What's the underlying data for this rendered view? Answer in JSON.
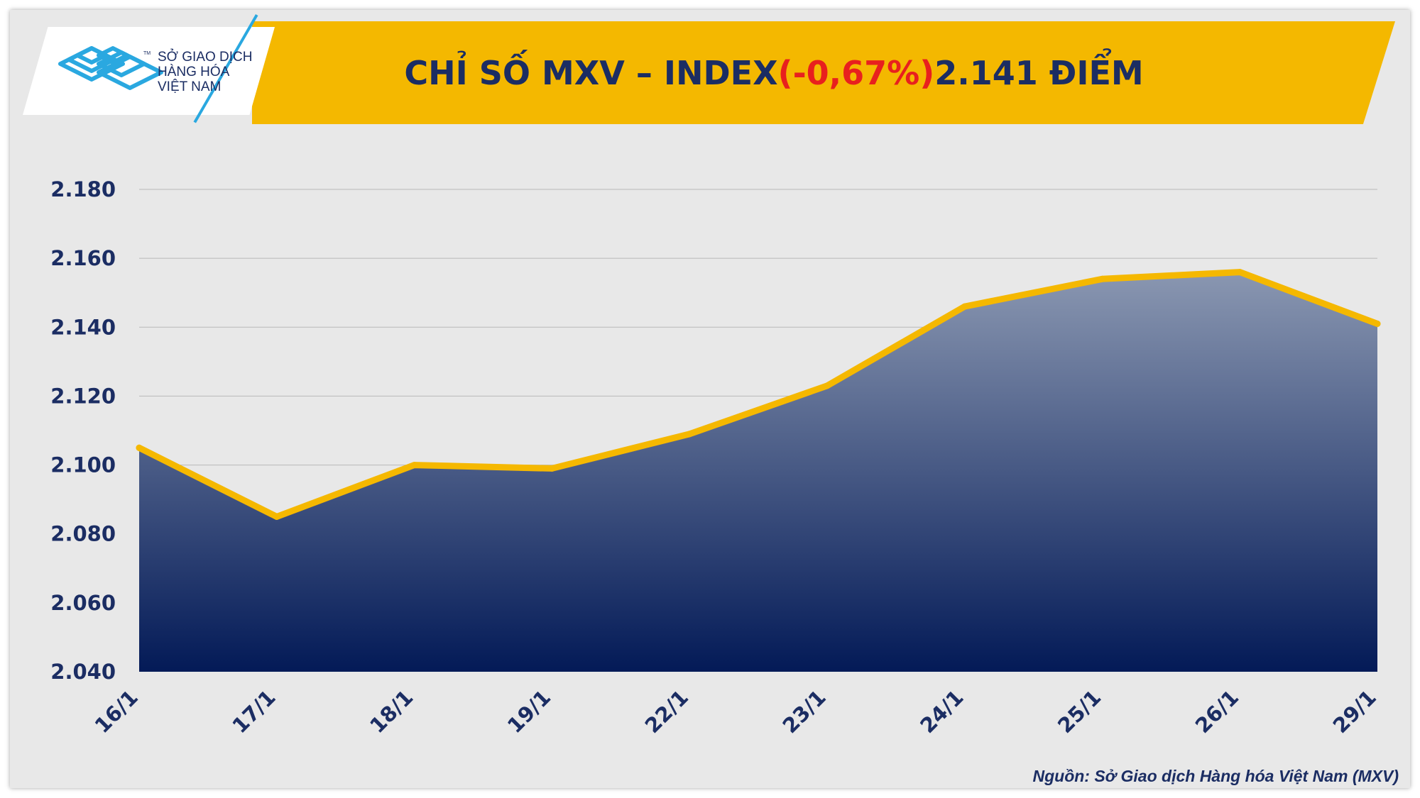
{
  "brand": {
    "logo_lines": [
      "SỞ GIAO DỊCH",
      "HÀNG HÓA",
      "VIỆT NAM"
    ],
    "tm": "TM",
    "colors": {
      "navy": "#1b2d63",
      "accent": "#2aa8e0",
      "banner": "#f4b800",
      "negative": "#e8201e"
    }
  },
  "header": {
    "title_main": "CHỈ SỐ MXV – INDEX ",
    "title_change": "(-0,67%)",
    "title_value": " 2.141 ĐIỂM"
  },
  "source": "Nguồn: Sở Giao dịch Hàng hóa Việt Nam (MXV)",
  "chart_data": {
    "type": "area",
    "categories": [
      "16/1",
      "17/1",
      "18/1",
      "19/1",
      "22/1",
      "23/1",
      "24/1",
      "25/1",
      "26/1",
      "29/1"
    ],
    "values": [
      2105,
      2085,
      2100,
      2099,
      2109,
      2123,
      2146,
      2154,
      2156,
      2141
    ],
    "ylim": [
      2040,
      2180
    ],
    "yticks": [
      2040,
      2060,
      2080,
      2100,
      2120,
      2140,
      2160,
      2180
    ],
    "ytick_labels": [
      "2.040",
      "2.060",
      "2.080",
      "2.100",
      "2.120",
      "2.140",
      "2.160",
      "2.180"
    ],
    "grid": true,
    "colors": {
      "line": "#f5b800",
      "fill_top": "#8a97b1",
      "fill_bottom": "#031a57",
      "grid": "#b8b8b8",
      "label": "#1b2d63"
    }
  }
}
